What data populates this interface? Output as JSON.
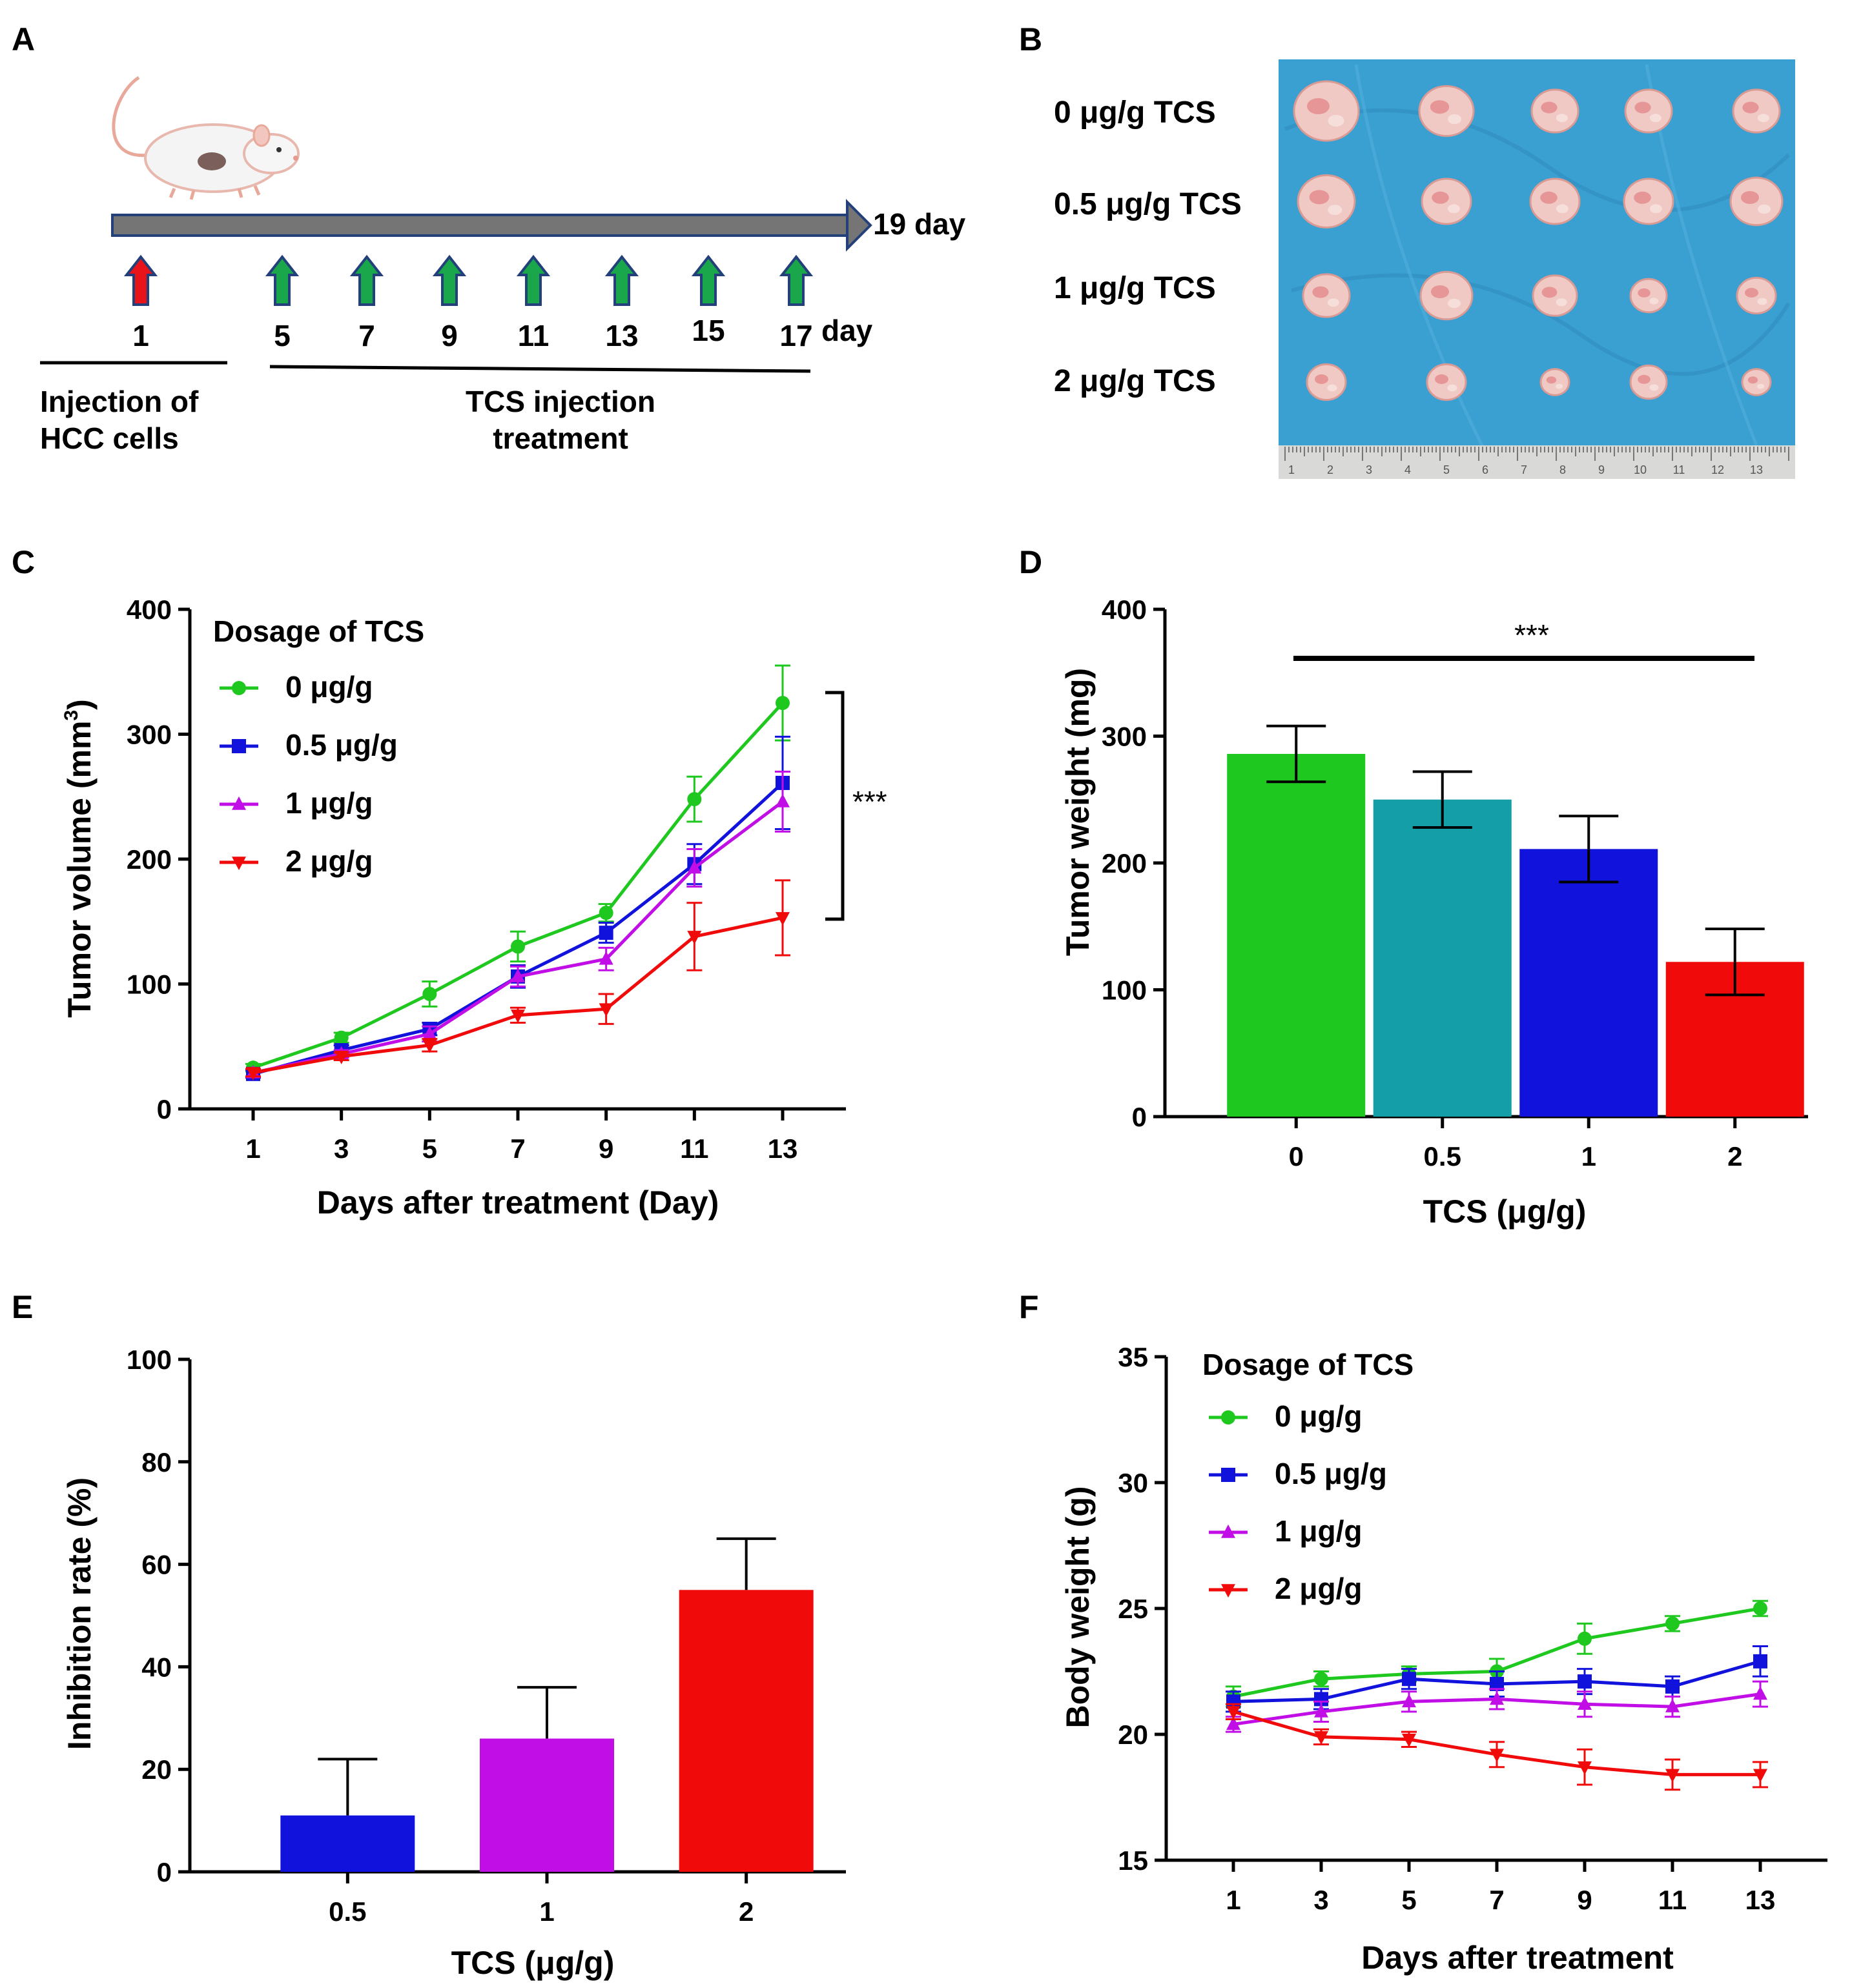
{
  "colors": {
    "green": "#1ec81e",
    "teal": "#139ea8",
    "blue": "#1212dd",
    "magenta": "#c20ee6",
    "red": "#f00a0a",
    "timeline": "#757575",
    "timeline_border": "#23407a",
    "background_cloth": "#3a9fd1",
    "black": "#000000"
  },
  "panels": {
    "A": {
      "letter": "A",
      "end_label": "19 day",
      "injection_days": [
        "1"
      ],
      "treatment_days": [
        "5",
        "7",
        "9",
        "11",
        "13",
        "15",
        "17"
      ],
      "day_suffix": "day",
      "phase1_label_line1": "Injection of",
      "phase1_label_line2": "HCC cells",
      "phase2_label_line1": "TCS injection",
      "phase2_label_line2": "treatment",
      "icons": [
        "mouse-icon",
        "red-up-arrow-icon",
        "green-up-arrow-icon"
      ]
    },
    "B": {
      "letter": "B",
      "rows": [
        "0 μg/g TCS",
        "0.5 μg/g TCS",
        "1 μg/g TCS",
        "2 μg/g TCS"
      ],
      "ruler_numbers": [
        "1",
        "2",
        "3",
        "4",
        "5",
        "6",
        "7",
        "8",
        "9",
        "10",
        "11",
        "12",
        "13"
      ],
      "icons": [
        "tumor-photo",
        "ruler-icon"
      ]
    },
    "C": {
      "letter": "C",
      "significance": "***",
      "legend_title": "Dosage of TCS"
    },
    "D": {
      "letter": "D",
      "significance": "***"
    },
    "E": {
      "letter": "E"
    },
    "F": {
      "letter": "F",
      "legend_title": "Dosage of TCS"
    }
  },
  "chart_data": [
    {
      "id": "C",
      "type": "line",
      "title": "",
      "xlabel": "Days after treatment (Day)",
      "ylabel_main": "Tumor volume (mm",
      "ylabel_sup": "3",
      "ylabel_end": ")",
      "x": [
        1,
        3,
        5,
        7,
        9,
        11,
        13
      ],
      "xticks": [
        "1",
        "3",
        "5",
        "7",
        "9",
        "11",
        "13"
      ],
      "yticks": [
        "0",
        "100",
        "200",
        "300",
        "400"
      ],
      "ylim": [
        0,
        400
      ],
      "legend_position": "top-left",
      "series": [
        {
          "name": "0 μg/g",
          "color": "#1ec81e",
          "marker": "circle",
          "values": [
            33,
            57,
            92,
            130,
            157,
            248,
            325
          ],
          "errors": [
            3,
            4,
            10,
            12,
            7,
            18,
            30
          ]
        },
        {
          "name": "0.5 μg/g",
          "color": "#1212dd",
          "marker": "square",
          "values": [
            28,
            47,
            64,
            106,
            141,
            196,
            261
          ],
          "errors": [
            3,
            4,
            5,
            9,
            8,
            16,
            37
          ]
        },
        {
          "name": "1 μg/g",
          "color": "#c20ee6",
          "marker": "triangle-up",
          "values": [
            29,
            44,
            60,
            106,
            120,
            193,
            246
          ],
          "errors": [
            3,
            3,
            6,
            8,
            9,
            15,
            24
          ]
        },
        {
          "name": "2 μg/g",
          "color": "#f00a0a",
          "marker": "triangle-down",
          "values": [
            29,
            42,
            51,
            75,
            80,
            138,
            153
          ],
          "errors": [
            3,
            3,
            5,
            6,
            12,
            27,
            30
          ]
        }
      ]
    },
    {
      "id": "D",
      "type": "bar",
      "title": "",
      "xlabel": "TCS (μg/g)",
      "ylabel": "Tumor weight (mg)",
      "categories": [
        "0",
        "0.5",
        "1",
        "2"
      ],
      "values": [
        286,
        250,
        211,
        122
      ],
      "errors": [
        22,
        22,
        26,
        26
      ],
      "colors": [
        "#1ec81e",
        "#139ea8",
        "#1212dd",
        "#f00a0a"
      ],
      "yticks": [
        "0",
        "100",
        "200",
        "300",
        "400"
      ],
      "ylim": [
        0,
        400
      ]
    },
    {
      "id": "E",
      "type": "bar",
      "title": "",
      "xlabel": "TCS (μg/g)",
      "ylabel": "Inhibition rate (%)",
      "categories": [
        "0.5",
        "1",
        "2"
      ],
      "values": [
        11,
        26,
        55
      ],
      "errors": [
        11,
        10,
        10
      ],
      "colors": [
        "#1212dd",
        "#c20ee6",
        "#f00a0a"
      ],
      "yticks": [
        "0",
        "20",
        "40",
        "60",
        "80",
        "100"
      ],
      "ylim": [
        0,
        100
      ]
    },
    {
      "id": "F",
      "type": "line",
      "title": "",
      "xlabel": "Days after treatment",
      "ylabel": "Body weight (g)",
      "x": [
        1,
        3,
        5,
        7,
        9,
        11,
        13
      ],
      "xticks": [
        "1",
        "3",
        "5",
        "7",
        "9",
        "11",
        "13"
      ],
      "yticks": [
        "15",
        "20",
        "25",
        "30",
        "35"
      ],
      "ylim": [
        15,
        35
      ],
      "legend_position": "top-left",
      "series": [
        {
          "name": "0 μg/g",
          "color": "#1ec81e",
          "marker": "circle",
          "values": [
            21.5,
            22.2,
            22.4,
            22.5,
            23.8,
            24.4,
            25.0
          ],
          "errors": [
            0.4,
            0.3,
            0.3,
            0.5,
            0.6,
            0.3,
            0.3
          ]
        },
        {
          "name": "0.5 μg/g",
          "color": "#1212dd",
          "marker": "square",
          "values": [
            21.3,
            21.4,
            22.2,
            22.0,
            22.1,
            21.9,
            22.9
          ],
          "errors": [
            0.4,
            0.4,
            0.4,
            0.5,
            0.5,
            0.4,
            0.6
          ]
        },
        {
          "name": "1 μg/g",
          "color": "#c20ee6",
          "marker": "triangle-up",
          "values": [
            20.4,
            20.9,
            21.3,
            21.4,
            21.2,
            21.1,
            21.6
          ],
          "errors": [
            0.3,
            0.4,
            0.4,
            0.4,
            0.5,
            0.4,
            0.5
          ]
        },
        {
          "name": "2 μg/g",
          "color": "#f00a0a",
          "marker": "triangle-down",
          "values": [
            20.9,
            19.9,
            19.8,
            19.2,
            18.7,
            18.4,
            18.4
          ],
          "errors": [
            0.3,
            0.3,
            0.3,
            0.5,
            0.7,
            0.6,
            0.5
          ]
        }
      ]
    }
  ]
}
